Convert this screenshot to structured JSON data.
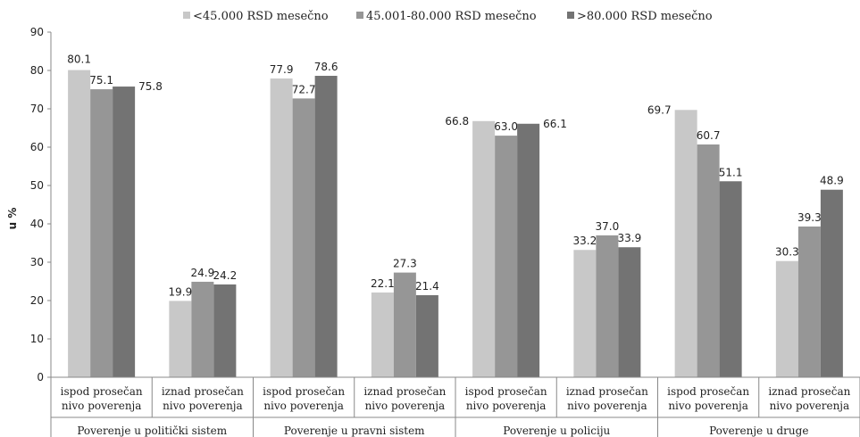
{
  "chart_data": {
    "type": "bar",
    "title": "",
    "xlabel": "",
    "ylabel": "u %",
    "ylim": [
      0,
      90
    ],
    "yticks": [
      0,
      10,
      20,
      30,
      40,
      50,
      60,
      70,
      80,
      90
    ],
    "grid": false,
    "legend_position": "top",
    "groups": [
      "Poverenje u politički sistem",
      "Poverenje u pravni sistem",
      "Poverenje u policiju",
      "Poverenje u druge"
    ],
    "categories": [
      [
        "ispod prosečan",
        "nivo poverenja"
      ],
      [
        "iznad prosečan",
        "nivo poverenja"
      ],
      [
        "ispod prosečan",
        "nivo poverenja"
      ],
      [
        "iznad prosečan",
        "nivo poverenja"
      ],
      [
        "ispod prosečan",
        "nivo poverenja"
      ],
      [
        "iznad prosečan",
        "nivo poverenja"
      ],
      [
        "ispod prosečan",
        "nivo poverenja"
      ],
      [
        "iznad prosečan",
        "nivo poverenja"
      ]
    ],
    "series": [
      {
        "name": "<45.000 RSD mesečno",
        "color": "#c8c8c8",
        "values": [
          80.1,
          19.9,
          77.9,
          22.1,
          66.8,
          33.2,
          69.7,
          30.3
        ]
      },
      {
        "name": "45.001-80.000 RSD mesečno",
        "color": "#969696",
        "values": [
          75.1,
          24.9,
          72.7,
          27.3,
          63.0,
          37.0,
          60.7,
          39.3
        ]
      },
      {
        "name": ">80.000 RSD mesečno",
        "color": "#737373",
        "values": [
          75.8,
          24.2,
          78.6,
          21.4,
          66.1,
          33.9,
          51.1,
          48.9
        ]
      }
    ]
  }
}
